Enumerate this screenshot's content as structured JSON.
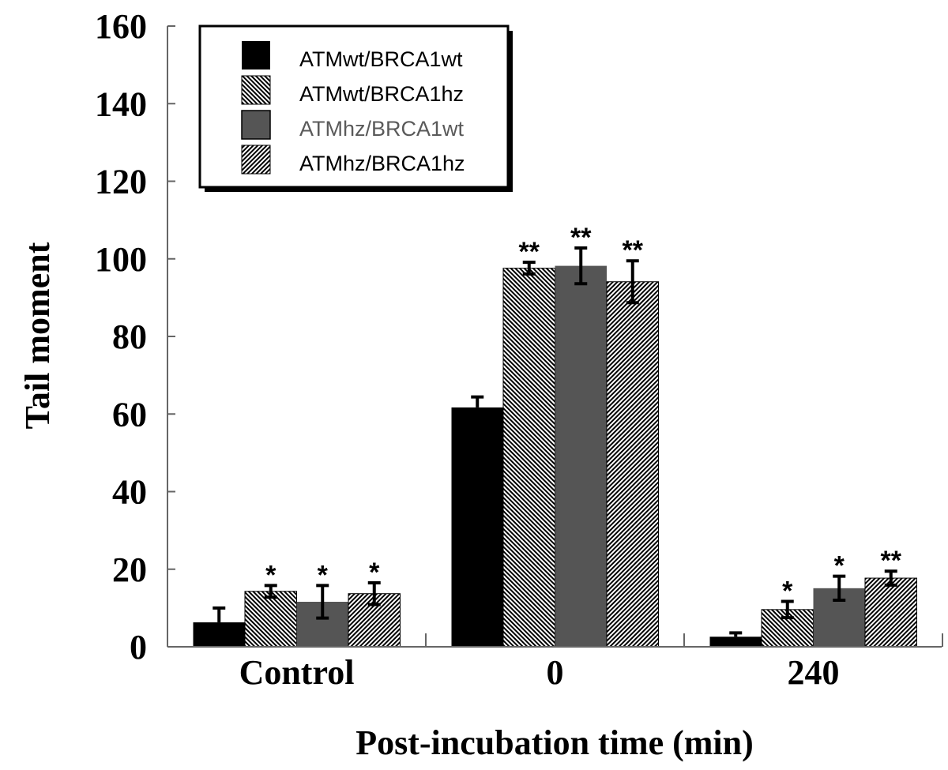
{
  "chart_data": {
    "type": "bar",
    "title": "",
    "xlabel": "Post-incubation time (min)",
    "ylabel": "Tail moment",
    "ylim": [
      0,
      160
    ],
    "yticks": [
      0,
      20,
      40,
      60,
      80,
      100,
      120,
      140,
      160
    ],
    "ytick_labels": [
      "0",
      "20",
      "40",
      "60",
      "80",
      "100",
      "120",
      "140",
      "160"
    ],
    "categories": [
      "Control",
      "0",
      "240"
    ],
    "grid": false,
    "legend_position": "top-left",
    "series": [
      {
        "name": "ATMwt/BRCA1wt",
        "fill": "solid",
        "color": "#000000",
        "label_color": "#000000",
        "values": [
          6.3,
          61.7,
          2.6
        ],
        "errors": [
          3.7,
          2.7,
          1.0
        ],
        "significance": [
          "",
          "",
          ""
        ]
      },
      {
        "name": "ATMwt/BRCA1hz",
        "fill": "hatch-back",
        "color": "#000000",
        "label_color": "#000000",
        "values": [
          14.3,
          97.6,
          9.6
        ],
        "errors": [
          1.5,
          1.5,
          2.1
        ],
        "significance": [
          "*",
          "**",
          "*"
        ]
      },
      {
        "name": "ATMhz/BRCA1wt",
        "fill": "solid",
        "color": "#555555",
        "label_color": "#5a5a5a",
        "values": [
          11.6,
          98.2,
          15.1
        ],
        "errors": [
          4.2,
          4.6,
          3.1
        ],
        "significance": [
          "*",
          "**",
          "*"
        ]
      },
      {
        "name": "ATMhz/BRCA1hz",
        "fill": "hatch-forward",
        "color": "#000000",
        "label_color": "#000000",
        "values": [
          13.7,
          94.1,
          17.7
        ],
        "errors": [
          2.8,
          5.4,
          1.8
        ],
        "significance": [
          "*",
          "**",
          "**"
        ]
      }
    ]
  }
}
